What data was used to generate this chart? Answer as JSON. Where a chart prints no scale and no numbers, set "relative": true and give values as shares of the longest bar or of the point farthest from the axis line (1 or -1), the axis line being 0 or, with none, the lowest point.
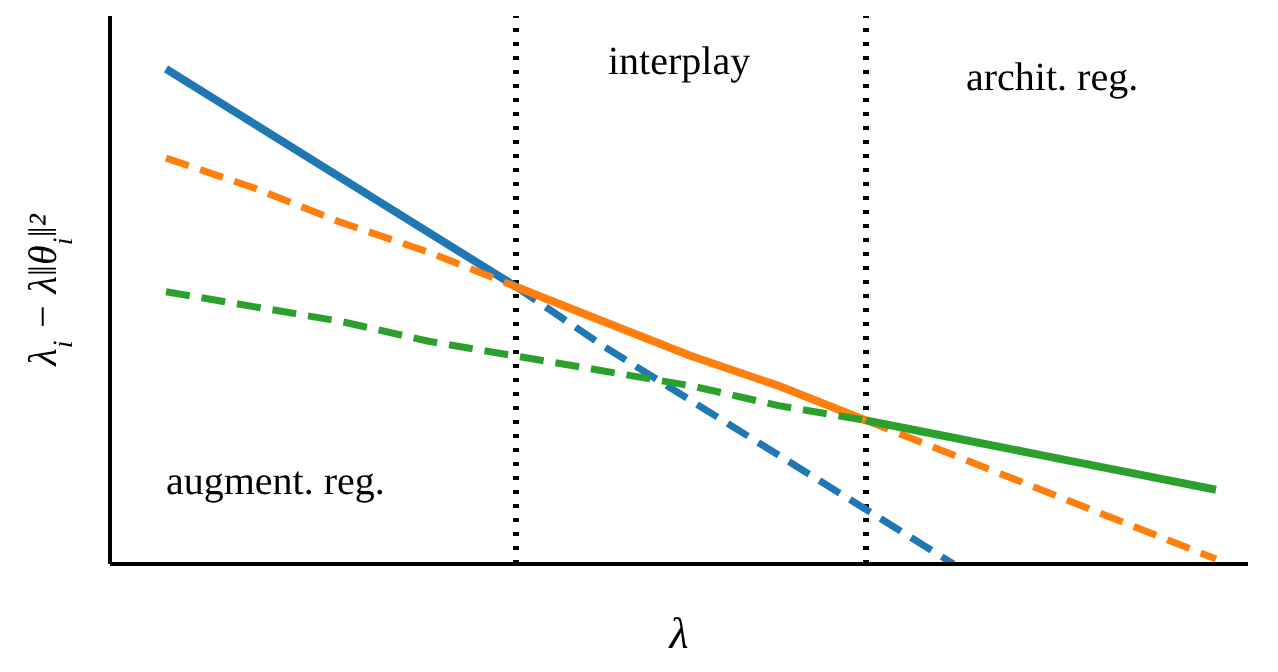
{
  "chart_data": {
    "type": "line",
    "relative": true,
    "xlabel": "λ",
    "ylabel": "λ$_{i}$ − λ‖θ$_{i}$‖²",
    "categories": [
      null,
      null,
      null,
      null,
      null,
      null,
      null,
      null,
      null,
      null,
      null,
      null,
      null
    ],
    "series": [
      {
        "color": "#1f77b4",
        "line_style": "solid",
        "values": [
          1,
          0.89,
          0.78,
          0.67,
          0.56,
          null,
          null,
          null,
          null,
          null,
          null,
          null,
          null
        ]
      },
      {
        "color": "#1f77b4",
        "line_style": "dashed",
        "values": [
          null,
          null,
          null,
          null,
          0.56,
          0.44,
          0.33,
          0.22,
          0.11,
          0,
          null,
          null,
          null
        ]
      },
      {
        "color": "#ff7f0e",
        "line_style": "dashed",
        "values": [
          0.82,
          0.76,
          0.69,
          0.63,
          0.56,
          null,
          null,
          null,
          null,
          null,
          null,
          null,
          null
        ]
      },
      {
        "color": "#ff7f0e",
        "line_style": "solid",
        "values": [
          null,
          null,
          null,
          null,
          0.56,
          0.49,
          0.42,
          0.36,
          0.29,
          null,
          null,
          null,
          null
        ]
      },
      {
        "color": "#ff7f0e",
        "line_style": "dashed",
        "values": [
          null,
          null,
          null,
          null,
          null,
          null,
          null,
          null,
          0.29,
          0.22,
          0.15,
          0.08,
          0.01
        ]
      },
      {
        "color": "#2ca02c",
        "line_style": "dashed",
        "values": [
          0.55,
          0.52,
          0.49,
          0.45,
          0.42,
          0.39,
          0.36,
          0.32,
          0.29,
          null,
          null,
          null,
          null
        ]
      },
      {
        "color": "#2ca02c",
        "line_style": "solid",
        "values": [
          null,
          null,
          null,
          null,
          null,
          null,
          null,
          null,
          0.29,
          0.255,
          0.22,
          0.185,
          0.15
        ]
      }
    ],
    "annotations": [
      "interplay",
      "archit. reg.",
      "augment. reg."
    ],
    "marker": "none",
    "grid": false
  }
}
